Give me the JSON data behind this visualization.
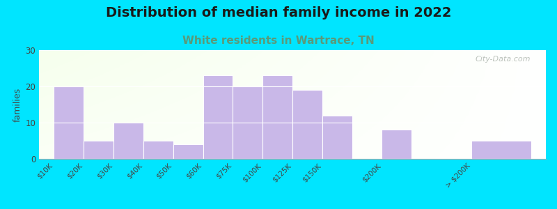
{
  "title": "Distribution of median family income in 2022",
  "subtitle": "White residents in Wartrace, TN",
  "ylabel": "families",
  "categories": [
    "$10K",
    "$20K",
    "$30K",
    "$40K",
    "$50K",
    "$60K",
    "$75K",
    "$100K",
    "$125K",
    "$150K",
    "$200K",
    "> $200K"
  ],
  "values": [
    20,
    5,
    10,
    5,
    4,
    23,
    20,
    23,
    19,
    12,
    8,
    5
  ],
  "bar_color": "#c9b8e8",
  "bar_edge_color": "#ffffff",
  "background_color": "#00e5ff",
  "title_fontsize": 14,
  "subtitle_fontsize": 11,
  "subtitle_color": "#5a9a7a",
  "ylabel_fontsize": 9,
  "ylim": [
    0,
    30
  ],
  "yticks": [
    0,
    10,
    20,
    30
  ],
  "watermark": "City-Data.com",
  "watermark_color": "#b0b8b0"
}
